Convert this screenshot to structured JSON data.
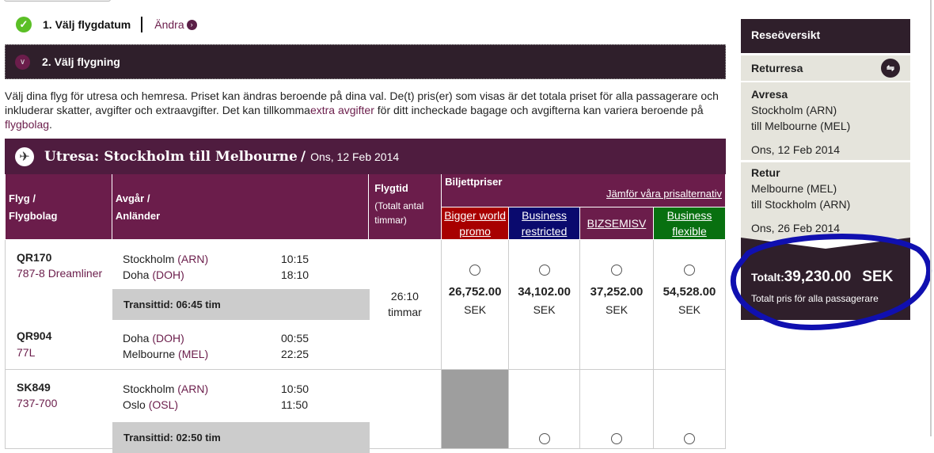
{
  "steps": {
    "step1": "1. Välj flygdatum",
    "change": "Ändra",
    "step2": "2. Välj flygning"
  },
  "intro": {
    "text1": "Välj dina flyg för utresa och hemresa. Priset kan ändras beroende på dina val. De(t) pris(er) som visas är det totala priset för alla passagerare och inkluderar skatter, avgifter och extraavgifter. Det kan tillkomma",
    "link1": "extra avgifter",
    "text2": " för ditt incheckade bagage och avgifterna kan variera beroende på ",
    "link2": "flygbolag",
    "text3": "."
  },
  "outbound": {
    "title": "Utresa: Stockholm till Melbourne",
    "sep": " / ",
    "date": "Ons, 12 Feb 2014"
  },
  "table": {
    "col_flight": [
      "Flyg /",
      "Flygbolag"
    ],
    "col_dep": [
      "Avgår /",
      "Anländer"
    ],
    "col_time": "Flygtid",
    "col_time_sub": "(Totalt antal timmar)",
    "col_prices": "Biljettpriser",
    "compare": "Jämför våra prisalternativ",
    "fares": [
      {
        "label": "Bigger world promo",
        "color": "#a80000"
      },
      {
        "label": "Business restricted",
        "color": "#0a0a6e"
      },
      {
        "label": "BIZSEMISV",
        "color": "#6b1d4b"
      },
      {
        "label": "Business flexible",
        "color": "#087010"
      }
    ]
  },
  "rows": [
    {
      "legs": [
        {
          "flight": "QR170",
          "aircraft": "787-8 Dreamliner",
          "from": "Stockholm",
          "from_code": "(ARN)",
          "dep": "10:15",
          "to": "Doha",
          "to_code": "(DOH)",
          "arr": "18:10"
        },
        {
          "flight": "QR904",
          "aircraft": "77L",
          "from": "Doha",
          "from_code": "(DOH)",
          "dep": "00:55",
          "to": "Melbourne",
          "to_code": "(MEL)",
          "arr": "22:25"
        }
      ],
      "transit": "Transittid: 06:45 tim",
      "duration": "26:10",
      "duration_unit": "timmar",
      "prices": [
        {
          "value": "26,752.00",
          "cur": "SEK"
        },
        {
          "value": "34,102.00",
          "cur": "SEK"
        },
        {
          "value": "37,252.00",
          "cur": "SEK"
        },
        {
          "value": "54,528.00",
          "cur": "SEK"
        }
      ]
    },
    {
      "legs": [
        {
          "flight": "SK849",
          "aircraft": "737-700",
          "from": "Stockholm",
          "from_code": "(ARN)",
          "dep": "10:50",
          "to": "Oslo",
          "to_code": "(OSL)",
          "arr": "11:50"
        }
      ],
      "transit": "Transittid: 02:50 tim"
    }
  ],
  "summary": {
    "title": "Reseöversikt",
    "trip_type": "Returresa",
    "out_label": "Avresa",
    "out_from": "Stockholm (ARN)",
    "out_to": "till Melbourne (MEL)",
    "out_date": "Ons, 12 Feb 2014",
    "ret_label": "Retur",
    "ret_from": "Melbourne (MEL)",
    "ret_to": "till Stockholm (ARN)",
    "ret_date": "Ons, 26 Feb 2014",
    "total_label": "Totalt:",
    "total_value": "39,230.00",
    "total_cur": "SEK",
    "total_note": "Totalt pris för alla passagerare"
  }
}
